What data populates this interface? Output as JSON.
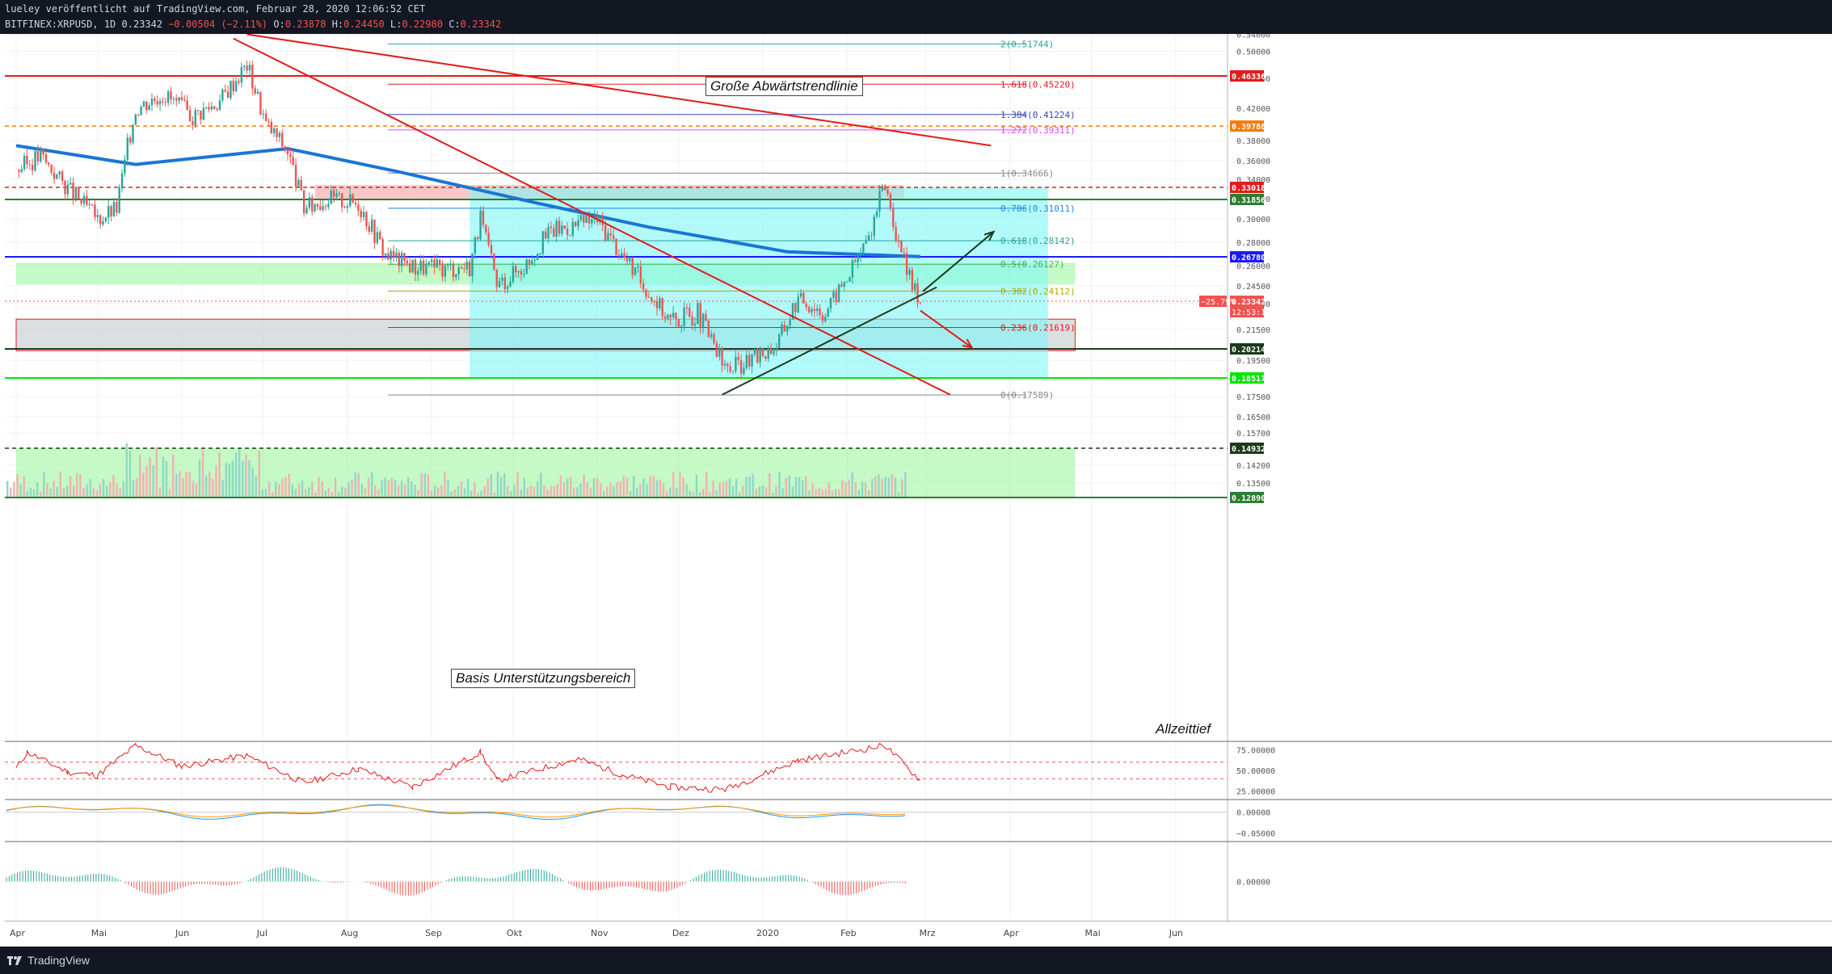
{
  "header": {
    "line1": "lueley veröffentlicht auf TradingView.com, Februar 28, 2020 12:06:52 CET",
    "symbol": "BITFINEX:XRPUSD, 1D",
    "last": "0.23342",
    "change": "−0.00504 (−2.11%)",
    "o_label": "O:",
    "o": "0.23878",
    "h_label": "H:",
    "h": "0.24450",
    "l_label": "L:",
    "l": "0.22980",
    "c_label": "C:",
    "c": "0.23342"
  },
  "footer": {
    "brand": "TradingView"
  },
  "colors": {
    "bg": "#131722",
    "up": "#26a69a",
    "down": "#ef5350",
    "ema200": "#1976d2",
    "trend_red": "#e21b1b",
    "cyan_zone": "#7ff7f7",
    "green_zone": "#9ef59e",
    "red_zone": "#f7a1a1",
    "gray_zone": "#c4c9cf"
  },
  "annotations": {
    "big_trend": "Große Abwärtstrendlinie",
    "support": "Basis Unterstützungsbereich",
    "ath_low": "Allzeittief"
  },
  "chart_data": [
    {
      "type": "candlestick",
      "title": "BITFINEX:XRPUSD, 1D",
      "x_tick_labels": [
        "Apr",
        "Mai",
        "Jun",
        "Jul",
        "Aug",
        "Sep",
        "Okt",
        "Nov",
        "Dez",
        "2020",
        "Feb",
        "Mrz",
        "Apr",
        "Mai",
        "Jun"
      ],
      "y_tick_labels": [
        "0.54000",
        "0.50000",
        "0.46000",
        "0.42000",
        "0.38000",
        "0.36000",
        "0.34000",
        "0.32000",
        "0.30000",
        "0.28000",
        "0.26000",
        "0.24500",
        "0.23000",
        "0.21500",
        "0.19500",
        "0.17500",
        "0.16500",
        "0.15700",
        "0.14200",
        "0.13500"
      ],
      "ylim": [
        0.128,
        0.545
      ],
      "grid": true,
      "price_series": [
        {
          "date": "2019-04-01",
          "close": 0.35
        },
        {
          "date": "2019-04-10",
          "close": 0.365
        },
        {
          "date": "2019-04-20",
          "close": 0.33
        },
        {
          "date": "2019-05-01",
          "close": 0.3
        },
        {
          "date": "2019-05-08",
          "close": 0.31
        },
        {
          "date": "2019-05-15",
          "close": 0.42
        },
        {
          "date": "2019-05-25",
          "close": 0.44
        },
        {
          "date": "2019-06-05",
          "close": 0.41
        },
        {
          "date": "2019-06-15",
          "close": 0.43
        },
        {
          "date": "2019-06-25",
          "close": 0.48
        },
        {
          "date": "2019-07-02",
          "close": 0.4
        },
        {
          "date": "2019-07-10",
          "close": 0.37
        },
        {
          "date": "2019-07-16",
          "close": 0.31
        },
        {
          "date": "2019-07-25",
          "close": 0.32
        },
        {
          "date": "2019-08-05",
          "close": 0.315
        },
        {
          "date": "2019-08-15",
          "close": 0.27
        },
        {
          "date": "2019-08-25",
          "close": 0.26
        },
        {
          "date": "2019-09-05",
          "close": 0.258
        },
        {
          "date": "2019-09-15",
          "close": 0.26
        },
        {
          "date": "2019-09-19",
          "close": 0.3
        },
        {
          "date": "2019-09-25",
          "close": 0.245
        },
        {
          "date": "2019-10-05",
          "close": 0.26
        },
        {
          "date": "2019-10-15",
          "close": 0.29
        },
        {
          "date": "2019-10-25",
          "close": 0.295
        },
        {
          "date": "2019-11-01",
          "close": 0.3
        },
        {
          "date": "2019-11-10",
          "close": 0.27
        },
        {
          "date": "2019-11-20",
          "close": 0.24
        },
        {
          "date": "2019-11-28",
          "close": 0.22
        },
        {
          "date": "2019-12-08",
          "close": 0.225
        },
        {
          "date": "2019-12-18",
          "close": 0.19
        },
        {
          "date": "2019-12-28",
          "close": 0.195
        },
        {
          "date": "2020-01-06",
          "close": 0.205
        },
        {
          "date": "2020-01-14",
          "close": 0.235
        },
        {
          "date": "2020-01-24",
          "close": 0.225
        },
        {
          "date": "2020-02-02",
          "close": 0.255
        },
        {
          "date": "2020-02-09",
          "close": 0.285
        },
        {
          "date": "2020-02-15",
          "close": 0.335
        },
        {
          "date": "2020-02-20",
          "close": 0.275
        },
        {
          "date": "2020-02-25",
          "close": 0.245
        },
        {
          "date": "2020-02-28",
          "close": 0.23342
        }
      ],
      "ema200": [
        {
          "date": "2019-04-01",
          "value": 0.375
        },
        {
          "date": "2019-05-15",
          "value": 0.356
        },
        {
          "date": "2019-07-10",
          "value": 0.372
        },
        {
          "date": "2019-08-20",
          "value": 0.348
        },
        {
          "date": "2019-10-10",
          "value": 0.315
        },
        {
          "date": "2019-11-20",
          "value": 0.293
        },
        {
          "date": "2020-01-10",
          "value": 0.272
        },
        {
          "date": "2020-02-28",
          "value": 0.268
        }
      ],
      "horizontal_levels": [
        {
          "price": 0.46336,
          "label": "0.46336",
          "color": "#e21b1b",
          "style": "solid"
        },
        {
          "price": 0.39788,
          "label": "0.39788",
          "color": "#f57c00",
          "style": "dashed"
        },
        {
          "price": 0.33018,
          "label": "0.33018",
          "color": "#e21b1b",
          "style": "dashed"
        },
        {
          "price": 0.31856,
          "label": "0.31856",
          "color": "#2e7d32",
          "style": "solid"
        },
        {
          "price": 0.2678,
          "label": "0.26780",
          "color": "#1a1aff",
          "style": "solid"
        },
        {
          "price": 0.20214,
          "label": "0.20214",
          "color": "#1b3b1b",
          "style": "solid"
        },
        {
          "price": 0.18517,
          "label": "0.18517",
          "color": "#00e600",
          "style": "solid"
        },
        {
          "price": 0.14932,
          "label": "0.14932",
          "color": "#1b3b1b",
          "style": "dashed"
        },
        {
          "price": 0.1289,
          "label": "0.12890",
          "color": "#2e7d32",
          "style": "solid"
        }
      ],
      "fibonacci": [
        {
          "ratio": "2",
          "price": 0.51744,
          "label": "2(0.51744)",
          "color": "#26a69a"
        },
        {
          "ratio": "1.618",
          "price": 0.4522,
          "label": "1.618(0.45220)",
          "color": "#e21b1b"
        },
        {
          "ratio": "1.384",
          "price": 0.41224,
          "label": "1.384(0.41224)",
          "color": "#3949ab"
        },
        {
          "ratio": "1.272",
          "price": 0.39311,
          "label": "1.272(0.39311)",
          "color": "#e040fb"
        },
        {
          "ratio": "1",
          "price": 0.34666,
          "label": "1(0.34666)",
          "color": "#888888"
        },
        {
          "ratio": "0.786",
          "price": 0.31011,
          "label": "0.786(0.31011)",
          "color": "#1e88e5"
        },
        {
          "ratio": "0.618",
          "price": 0.28142,
          "label": "0.618(0.28142)",
          "color": "#26a69a"
        },
        {
          "ratio": "0.5",
          "price": 0.26127,
          "label": "0.5(0.26127)",
          "color": "#4caf50"
        },
        {
          "ratio": "0.382",
          "price": 0.24112,
          "label": "0.382(0.24112)",
          "color": "#a8a800"
        },
        {
          "ratio": "0.236",
          "price": 0.21619,
          "label": "0.236(0.21619)",
          "color": "#e21b1b"
        },
        {
          "ratio": "0",
          "price": 0.17589,
          "label": "0(0.17589)",
          "color": "#888888"
        }
      ],
      "last_price_badge": {
        "price": 0.23342,
        "label": "0.23342",
        "countdown": "12:53:10",
        "pct": "−25.79%"
      },
      "trendlines": [
        {
          "from": {
            "date": "2019-06-25",
            "price": 0.54
          },
          "to": {
            "date": "2020-03-25",
            "price": 0.375
          },
          "color": "#e21b1b"
        },
        {
          "from": {
            "date": "2019-06-20",
            "price": 0.53
          },
          "to": {
            "date": "2020-03-10",
            "price": 0.176
          },
          "color": "#e21b1b"
        },
        {
          "from": {
            "date": "2019-12-17",
            "price": 0.176
          },
          "to": {
            "date": "2020-03-05",
            "price": 0.244
          },
          "color": "#1b3b1b"
        }
      ],
      "zones": [
        {
          "from_date": "2019-07-20",
          "to_date": "2020-02-22",
          "top": 0.333,
          "bottom": 0.318,
          "color": "#f7a1a1"
        },
        {
          "from_date": "2019-04-01",
          "to_date": "2020-04-25",
          "top": 0.2625,
          "bottom": 0.246,
          "color": "#9ef59e"
        },
        {
          "from_date": "2019-04-01",
          "to_date": "2020-04-25",
          "top": 0.221,
          "bottom": 0.201,
          "color": "#c4c9cf"
        },
        {
          "from_date": "2019-09-15",
          "to_date": "2020-04-15",
          "top": 0.33,
          "bottom": 0.185,
          "color": "#7ff7f7"
        },
        {
          "from_date": "2019-04-01",
          "to_date": "2020-04-25",
          "top": 0.14932,
          "bottom": 0.1289,
          "color": "#9ef59e"
        }
      ],
      "arrows": [
        {
          "from": {
            "date": "2020-02-29",
            "price": 0.241
          },
          "to": {
            "date": "2020-03-26",
            "price": 0.289
          },
          "color": "#1b3b1b"
        },
        {
          "from": {
            "date": "2020-02-28",
            "price": 0.226
          },
          "to": {
            "date": "2020-03-18",
            "price": 0.203
          },
          "color": "#e21b1b"
        }
      ]
    },
    {
      "type": "line",
      "name": "RSI",
      "y_tick_labels": [
        "75.00000",
        "50.00000",
        "25.00000"
      ],
      "ylim": [
        15,
        85
      ],
      "bands": [
        60,
        40
      ],
      "values": [
        {
          "date": "2019-04-01",
          "value": 52
        },
        {
          "date": "2019-04-05",
          "value": 72
        },
        {
          "date": "2019-04-20",
          "value": 48
        },
        {
          "date": "2019-05-01",
          "value": 44
        },
        {
          "date": "2019-05-15",
          "value": 80
        },
        {
          "date": "2019-06-01",
          "value": 55
        },
        {
          "date": "2019-06-25",
          "value": 68
        },
        {
          "date": "2019-07-16",
          "value": 35
        },
        {
          "date": "2019-08-05",
          "value": 52
        },
        {
          "date": "2019-08-25",
          "value": 30
        },
        {
          "date": "2019-09-19",
          "value": 72
        },
        {
          "date": "2019-09-25",
          "value": 38
        },
        {
          "date": "2019-10-25",
          "value": 64
        },
        {
          "date": "2019-11-10",
          "value": 45
        },
        {
          "date": "2019-11-28",
          "value": 30
        },
        {
          "date": "2019-12-18",
          "value": 27
        },
        {
          "date": "2020-01-14",
          "value": 62
        },
        {
          "date": "2020-02-15",
          "value": 80
        },
        {
          "date": "2020-02-28",
          "value": 38
        }
      ]
    },
    {
      "type": "line",
      "name": "MACD",
      "y_tick_labels": [
        "0.00000",
        "−0.05000"
      ],
      "ylim": [
        -0.07,
        0.03
      ]
    },
    {
      "type": "bar",
      "name": "Histogram",
      "y_tick_labels": [
        "0.00000"
      ],
      "ylim": [
        -0.05,
        0.05
      ]
    }
  ]
}
